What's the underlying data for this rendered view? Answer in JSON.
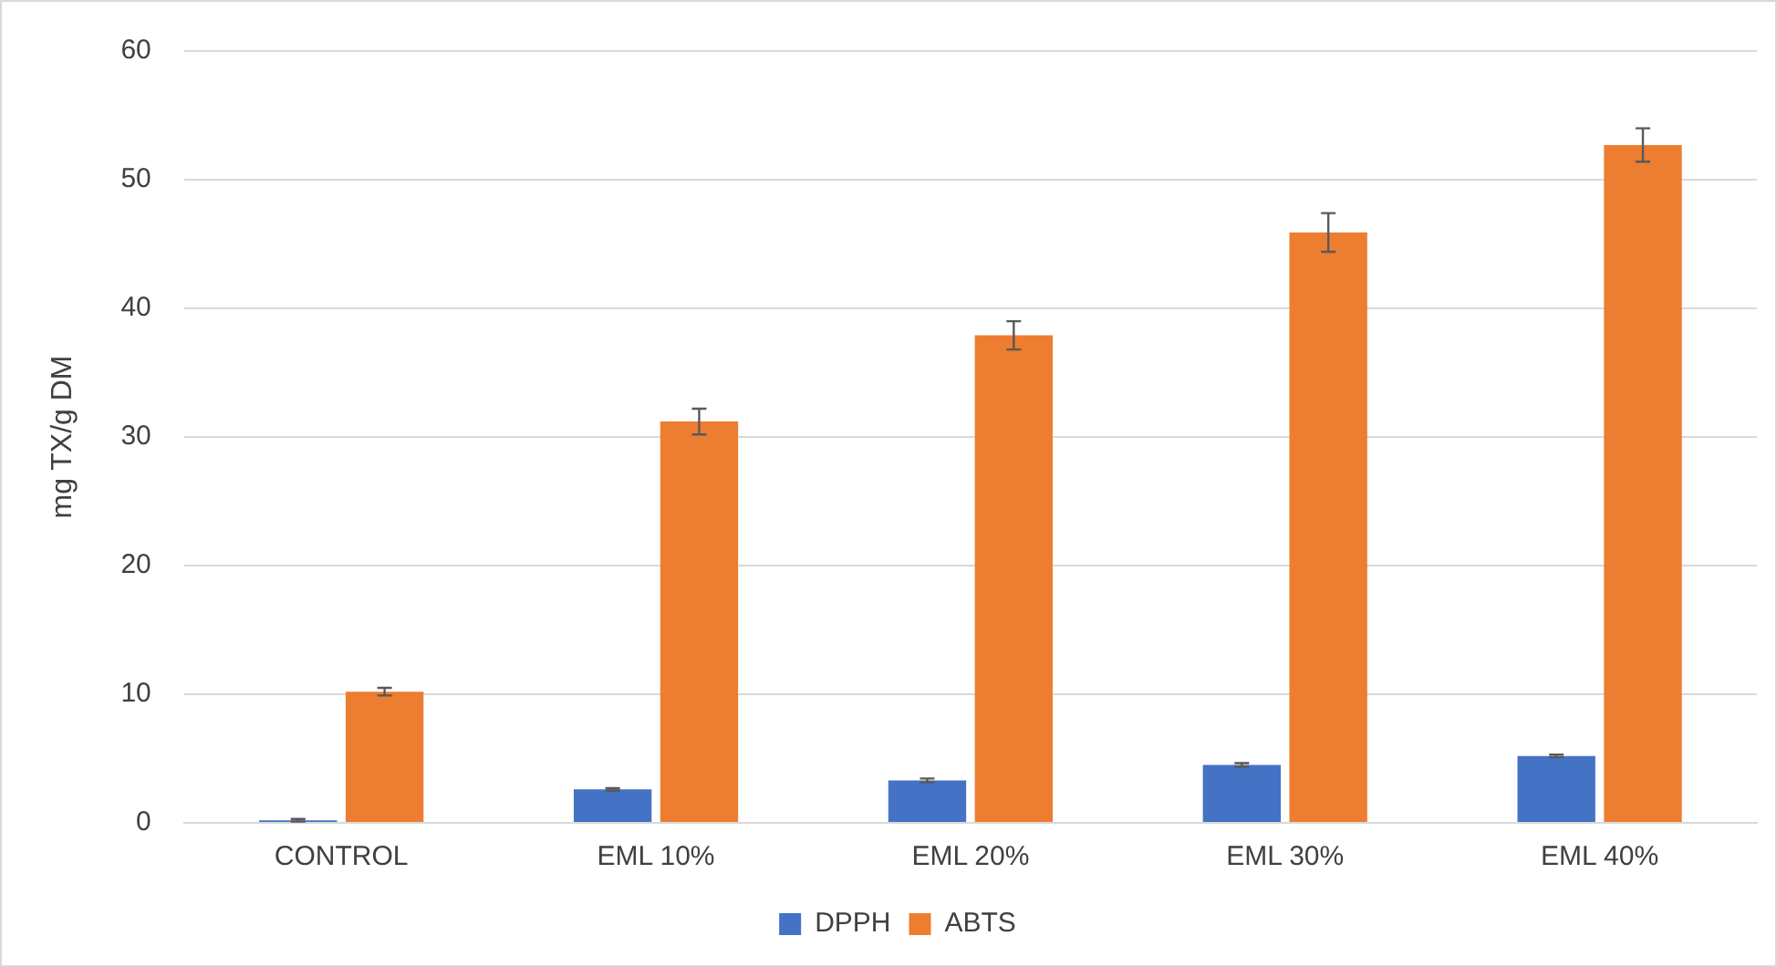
{
  "chart_data": {
    "type": "bar",
    "ylabel": "mg TX/g DM",
    "categories": [
      "CONTROL",
      "EML 10%",
      "EML 20%",
      "EML 30%",
      "EML 40%"
    ],
    "series": [
      {
        "name": "DPPH",
        "color": "#4472c4",
        "values": [
          0.2,
          2.6,
          3.3,
          4.5,
          5.2
        ],
        "errors": [
          0.1,
          0.1,
          0.15,
          0.15,
          0.1
        ]
      },
      {
        "name": "ABTS",
        "color": "#ed7d31",
        "values": [
          10.2,
          31.2,
          37.9,
          45.9,
          52.7
        ],
        "errors": [
          0.3,
          1.0,
          1.1,
          1.5,
          1.3
        ]
      }
    ],
    "ylim": [
      0,
      60
    ],
    "yticks": [
      0,
      10,
      20,
      30,
      40,
      50,
      60
    ],
    "grid": "y",
    "legend": "bottom"
  }
}
